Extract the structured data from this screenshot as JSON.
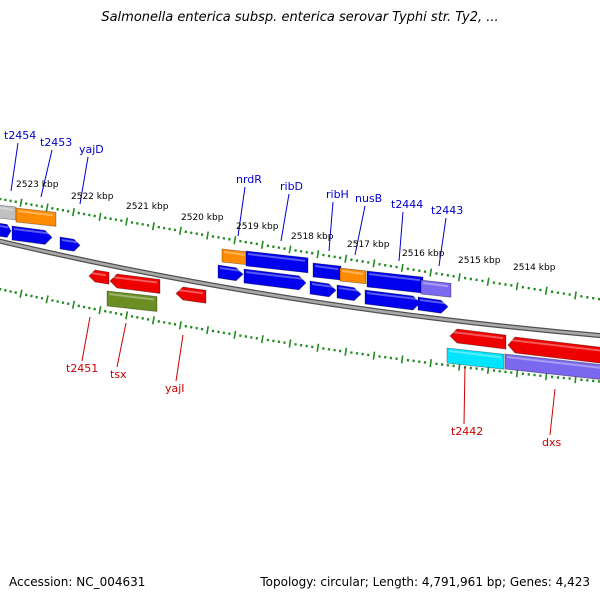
{
  "header": {
    "title": "Salmonella enterica subsp. enterica serovar Typhi str. Ty2, ..."
  },
  "footer": {
    "accession": "Accession: NC_004631",
    "topology": "Topology: circular; Length: 4,791,961 bp; Genes: 4,423"
  },
  "colors": {
    "forward_label": "#0000cc",
    "reverse_label": "#cc0000",
    "tick_marks": "#228b22",
    "backbone": "#808080",
    "blue_gene": "#0000ee",
    "red_gene": "#ee0000",
    "orange_gene": "#ff8c00",
    "olive_gene": "#6b8e23",
    "cyan_gene": "#00e5ff",
    "slate_gene": "#7b68ee",
    "gray_gene": "#c0c0c0"
  },
  "map": {
    "kbp_labels": [
      "2523 kbp",
      "2522 kbp",
      "2521 kbp",
      "2520 kbp",
      "2519 kbp",
      "2518 kbp",
      "2517 kbp",
      "2516 kbp",
      "2515 kbp",
      "2514 kbp"
    ],
    "forward_gene_labels": [
      "t2454",
      "t2453",
      "yajD",
      "nrdR",
      "ribD",
      "ribH",
      "nusB",
      "t2444",
      "t2443"
    ],
    "reverse_gene_labels": [
      "t2451",
      "tsx",
      "yajI",
      "t2442",
      "dxs"
    ]
  }
}
